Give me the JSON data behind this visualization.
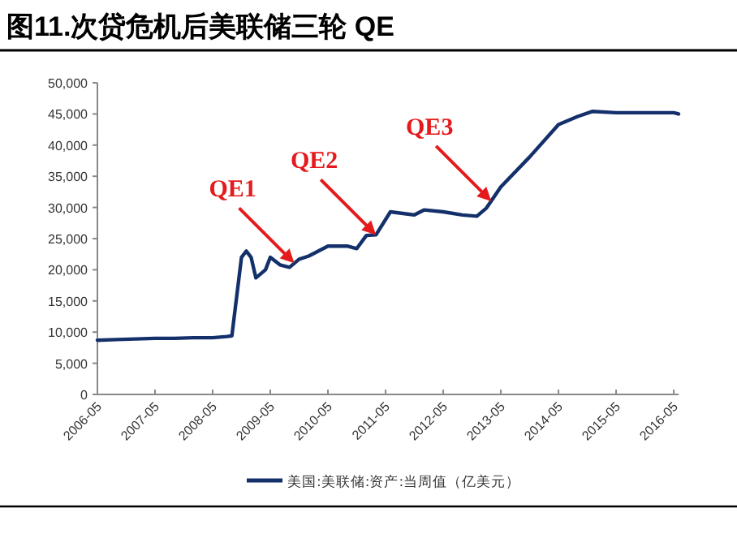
{
  "chart_data": {
    "type": "line",
    "title": "图11.次贷危机后美联储三轮 QE",
    "x": [
      "2006-05",
      "2006-09",
      "2007-01",
      "2007-05",
      "2007-09",
      "2008-01",
      "2008-05",
      "2008-08",
      "2008-09",
      "2008-11",
      "2008-12",
      "2009-01",
      "2009-02",
      "2009-04",
      "2009-05",
      "2009-07",
      "2009-09",
      "2009-11",
      "2010-01",
      "2010-05",
      "2010-09",
      "2010-11",
      "2011-01",
      "2011-03",
      "2011-06",
      "2011-11",
      "2012-01",
      "2012-05",
      "2012-09",
      "2012-12",
      "2013-02",
      "2013-05",
      "2013-11",
      "2014-05",
      "2014-09",
      "2014-12",
      "2015-05",
      "2015-11",
      "2016-05",
      "2016-06"
    ],
    "series": [
      {
        "name": "美国:美联储:资产:当周值（亿美元）",
        "color": "#14306b",
        "values": [
          8700,
          8800,
          8900,
          9000,
          9000,
          9100,
          9100,
          9300,
          9400,
          22000,
          23000,
          22000,
          18700,
          20000,
          22000,
          20800,
          20400,
          21700,
          22200,
          23800,
          23800,
          23400,
          25500,
          25600,
          29300,
          28800,
          29600,
          29300,
          28800,
          28600,
          29900,
          33300,
          38100,
          43300,
          44600,
          45400,
          45200,
          45200,
          45200,
          45000
        ]
      }
    ],
    "xlim": [
      "2006-05",
      "2016-06"
    ],
    "xticks": [
      "2006-05",
      "2007-05",
      "2008-05",
      "2009-05",
      "2010-05",
      "2011-05",
      "2012-05",
      "2013-05",
      "2014-05",
      "2015-05",
      "2016-05"
    ],
    "ylim": [
      0,
      50000
    ],
    "yticks": [
      {
        "value": 0,
        "label": "0"
      },
      {
        "value": 5000,
        "label": "5,000"
      },
      {
        "value": 10000,
        "label": "10,000"
      },
      {
        "value": 15000,
        "label": "15,000"
      },
      {
        "value": 20000,
        "label": "20,000"
      },
      {
        "value": 25000,
        "label": "25,000"
      },
      {
        "value": 30000,
        "label": "30,000"
      },
      {
        "value": 35000,
        "label": "35,000"
      },
      {
        "value": 40000,
        "label": "40,000"
      },
      {
        "value": 45000,
        "label": "45,000"
      },
      {
        "value": 50000,
        "label": "50,000"
      }
    ],
    "annotations": [
      {
        "text": "QE1",
        "x": "2009-10",
        "y": 21050
      },
      {
        "text": "QE2",
        "x": "2011-03",
        "y": 25600
      },
      {
        "text": "QE3",
        "x": "2013-03",
        "y": 31000
      }
    ],
    "grid": false,
    "legend": "bottom",
    "marker": "none",
    "line_style": "solid"
  }
}
